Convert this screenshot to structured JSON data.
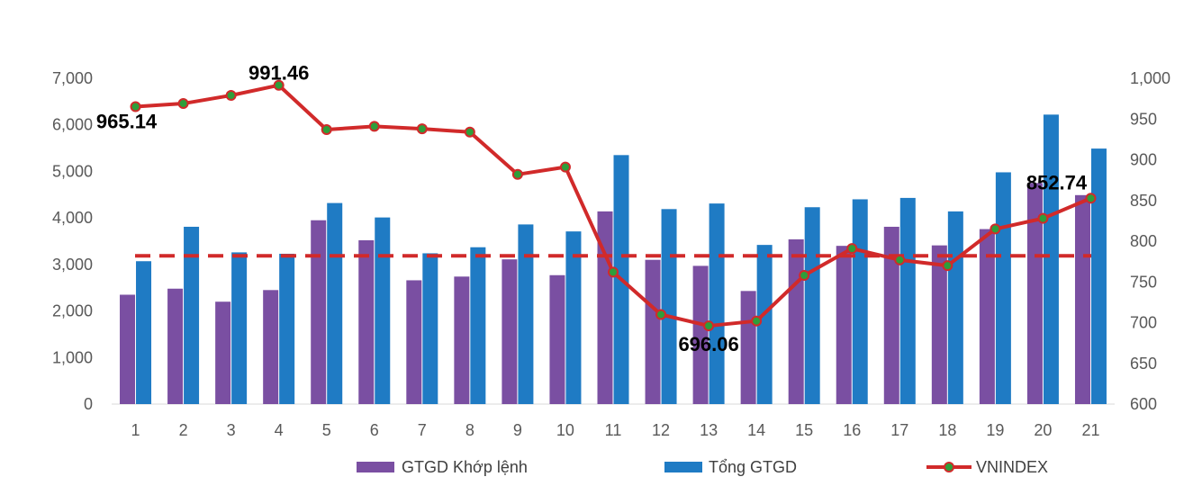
{
  "chart_data": {
    "type": "bar",
    "categories": [
      "1",
      "2",
      "3",
      "4",
      "5",
      "6",
      "7",
      "8",
      "9",
      "10",
      "11",
      "12",
      "13",
      "14",
      "15",
      "16",
      "17",
      "18",
      "19",
      "20",
      "21"
    ],
    "series": [
      {
        "name": "GTGD Khớp lệnh",
        "type": "bar",
        "axis": "left",
        "color": "#7A4FA2",
        "values": [
          2350,
          2480,
          2200,
          2450,
          3950,
          3520,
          2660,
          2740,
          3110,
          2770,
          4140,
          3100,
          2970,
          2430,
          3540,
          3400,
          3810,
          3410,
          3760,
          4750,
          4490
        ]
      },
      {
        "name": "Tổng GTGD",
        "type": "bar",
        "axis": "left",
        "color": "#1F7BC4",
        "values": [
          3070,
          3810,
          3260,
          3230,
          4320,
          4010,
          3240,
          3370,
          3860,
          3710,
          5350,
          4190,
          4310,
          3420,
          4230,
          4400,
          4430,
          4140,
          4980,
          6220,
          5490
        ]
      },
      {
        "name": "VNINDEX",
        "type": "line",
        "axis": "right",
        "color": "#D12A2A",
        "marker_color": "#2E9E3A",
        "values": [
          965.14,
          969,
          979,
          991.46,
          937,
          941,
          938,
          934,
          882,
          891,
          762,
          710,
          696.06,
          702,
          758,
          791,
          777,
          770,
          815,
          828,
          852.74
        ]
      }
    ],
    "reference_line": {
      "axis": "right",
      "value": 782,
      "style": "dashed",
      "color": "#D12A2A"
    },
    "data_labels": [
      {
        "index": 0,
        "text": "965.14",
        "placement": "below"
      },
      {
        "index": 3,
        "text": "991.46",
        "placement": "above"
      },
      {
        "index": 12,
        "text": "696.06",
        "placement": "below"
      },
      {
        "index": 20,
        "text": "852.74",
        "placement": "above-left"
      }
    ],
    "y_left": {
      "ylim": [
        0,
        7000
      ],
      "ticks": [
        0,
        1000,
        2000,
        3000,
        4000,
        5000,
        6000,
        7000
      ],
      "tick_labels": [
        "0",
        "1,000",
        "2,000",
        "3,000",
        "4,000",
        "5,000",
        "6,000",
        "7,000"
      ]
    },
    "y_right": {
      "ylim": [
        600,
        1000
      ],
      "ticks": [
        600,
        650,
        700,
        750,
        800,
        850,
        900,
        950,
        1000
      ],
      "tick_labels": [
        "600",
        "650",
        "700",
        "750",
        "800",
        "850",
        "900",
        "950",
        "1,000"
      ]
    },
    "grid": false,
    "legend": {
      "position": "bottom",
      "entries": [
        "GTGD Khớp lệnh",
        "Tổng GTGD",
        "VNINDEX"
      ]
    }
  }
}
